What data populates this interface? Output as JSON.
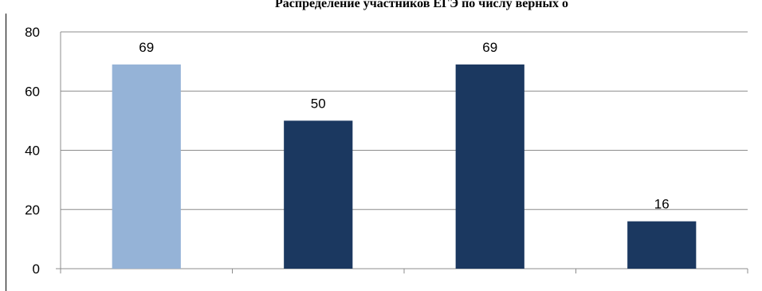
{
  "chart_data": {
    "type": "bar",
    "title": "Распределение участников ЕГЭ по числу верных о",
    "xlabel": "",
    "ylabel": "",
    "categories": [
      "",
      "",
      "",
      ""
    ],
    "values": [
      69,
      50,
      69,
      16
    ],
    "bar_colors": [
      "#95b3d7",
      "#1b3860",
      "#1b3860",
      "#1b3860"
    ],
    "ylim": [
      0,
      80
    ],
    "yticks": [
      0,
      20,
      40,
      60,
      80
    ],
    "grid": true,
    "data_labels": true,
    "legend": "none"
  },
  "colors": {
    "gridline": "#8c8c8c",
    "axis": "#8c8c8c",
    "text": "#000000"
  }
}
